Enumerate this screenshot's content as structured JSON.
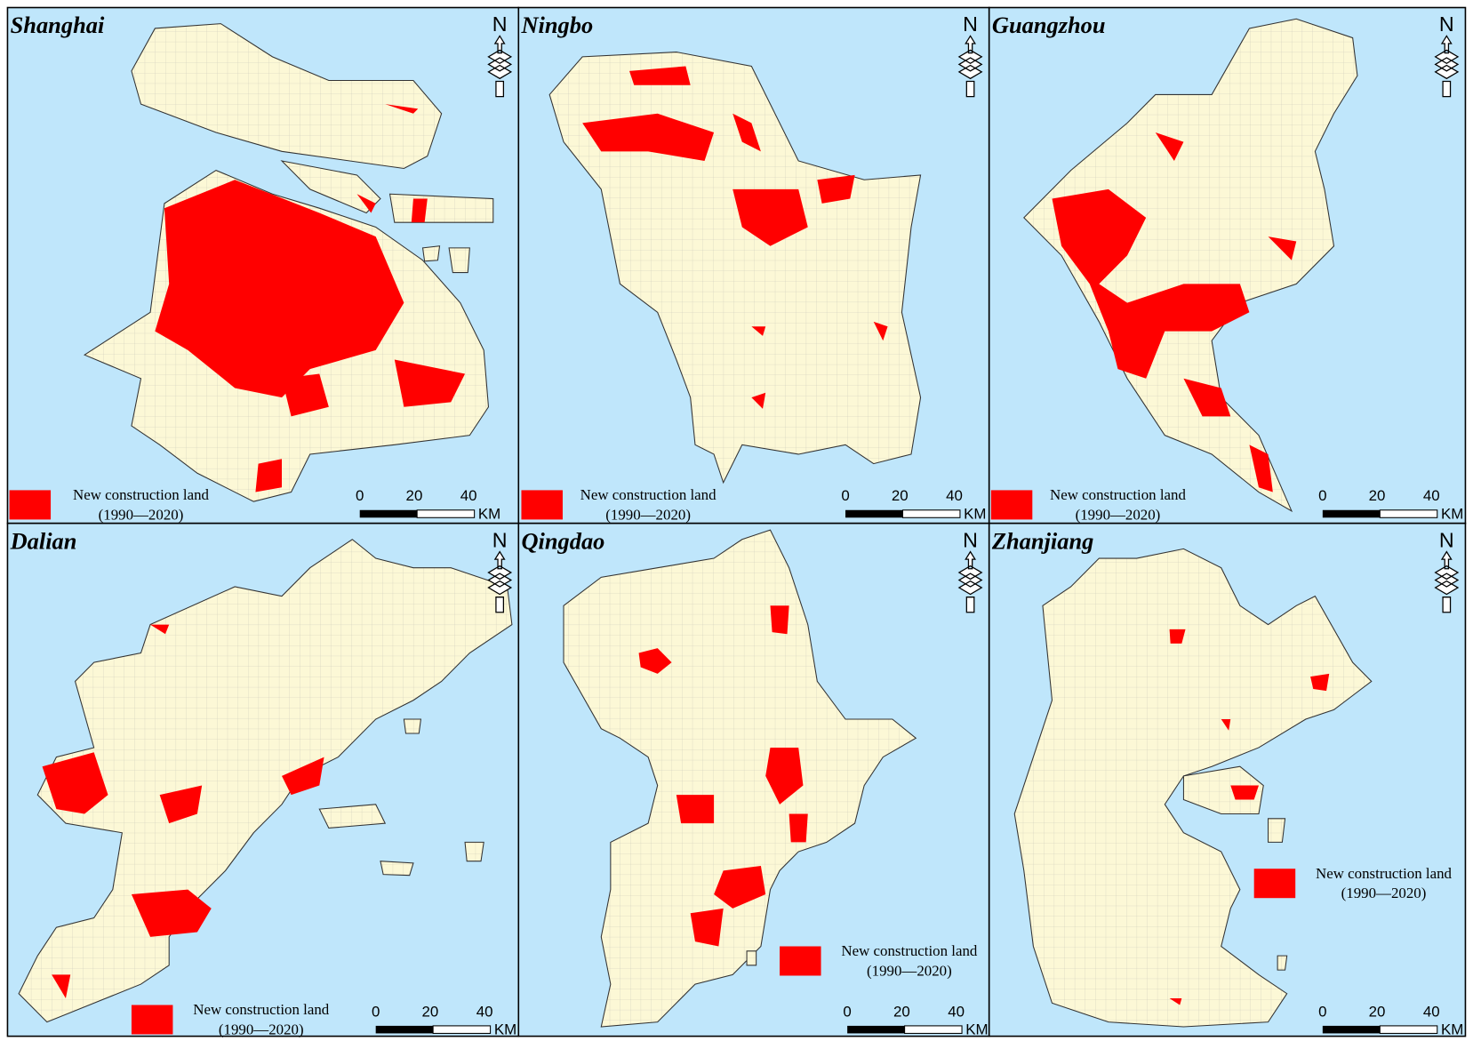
{
  "north_label": "N",
  "panels": [
    {
      "name": "Shanghai",
      "legend": {
        "label": "New construction land",
        "period": "(1990—2020)"
      },
      "scale": {
        "ticks": [
          0,
          20,
          40
        ],
        "unit": "KM"
      }
    },
    {
      "name": "Ningbo",
      "legend": {
        "label": "New construction land",
        "period": "(1990—2020)"
      },
      "scale": {
        "ticks": [
          0,
          20,
          40
        ],
        "unit": "KM"
      }
    },
    {
      "name": "Guangzhou",
      "legend": {
        "label": "New construction land",
        "period": "(1990—2020)"
      },
      "scale": {
        "ticks": [
          0,
          20,
          40
        ],
        "unit": "KM"
      }
    },
    {
      "name": "Dalian",
      "legend": {
        "label": "New construction land",
        "period": "(1990—2020)"
      },
      "scale": {
        "ticks": [
          0,
          20,
          40
        ],
        "unit": "KM"
      }
    },
    {
      "name": "Qingdao",
      "legend": {
        "label": "New construction land",
        "period": "(1990—2020)"
      },
      "scale": {
        "ticks": [
          0,
          20,
          40
        ],
        "unit": "KM"
      }
    },
    {
      "name": "Zhanjiang",
      "legend": {
        "label": "New construction land",
        "period": "(1990—2020)"
      },
      "scale": {
        "ticks": [
          0,
          20,
          40
        ],
        "unit": "KM"
      }
    }
  ]
}
